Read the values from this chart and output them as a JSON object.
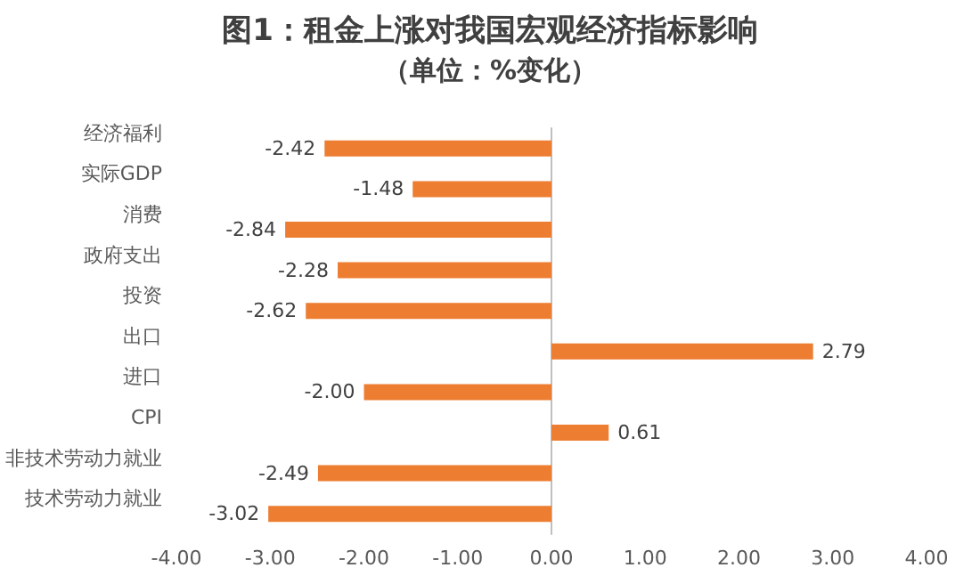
{
  "chart_data": {
    "type": "bar",
    "orientation": "horizontal",
    "title": "图1：租金上涨对我国宏观经济指标影响",
    "subtitle": "（单位：%变化）",
    "categories": [
      "经济福利",
      "实际GDP",
      "消费",
      "政府支出",
      "投资",
      "出口",
      "进口",
      "CPI",
      "非技术劳动力就业",
      "技术劳动力就业"
    ],
    "values": [
      -2.42,
      -1.48,
      -2.84,
      -2.28,
      -2.62,
      2.79,
      -2.0,
      0.61,
      -2.49,
      -3.02
    ],
    "value_labels": [
      "-2.42",
      "-1.48",
      "-2.84",
      "-2.28",
      "-2.62",
      "2.79",
      "-2.00",
      "0.61",
      "-2.49",
      "-3.02"
    ],
    "xlim": [
      -4,
      4
    ],
    "xticks": [
      {
        "value": -4,
        "label": "-4.00"
      },
      {
        "value": -3,
        "label": "-3.00"
      },
      {
        "value": -2,
        "label": "-2.00"
      },
      {
        "value": -1,
        "label": "-1.00"
      },
      {
        "value": 0,
        "label": "0.00"
      },
      {
        "value": 1,
        "label": "1.00"
      },
      {
        "value": 2,
        "label": "2.00"
      },
      {
        "value": 3,
        "label": "3.00"
      },
      {
        "value": 4,
        "label": "4.00"
      }
    ],
    "color": "#ed7d31"
  }
}
